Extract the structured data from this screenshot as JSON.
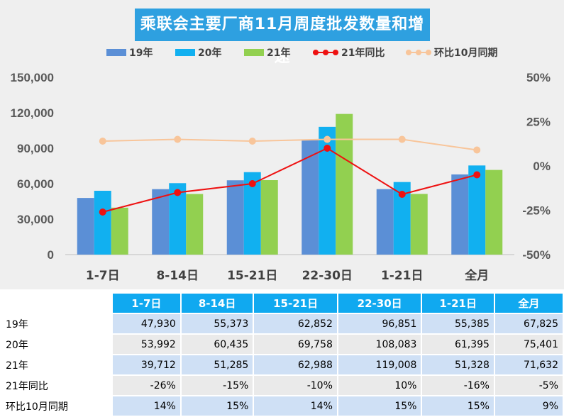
{
  "chart_data": {
    "type": "bar",
    "title": "乘联会主要厂商11月周度批发数量和增速",
    "categories": [
      "1-7日",
      "8-14日",
      "15-21日",
      "22-30日",
      "1-21日",
      "全月"
    ],
    "series": [
      {
        "name": "19年",
        "type": "bar",
        "color": "#5b8fd6",
        "values": [
          47930,
          55373,
          62852,
          96851,
          55385,
          67825
        ]
      },
      {
        "name": "20年",
        "type": "bar",
        "color": "#11b0f0",
        "values": [
          53992,
          60435,
          69758,
          108083,
          61395,
          75401
        ]
      },
      {
        "name": "21年",
        "type": "bar",
        "color": "#92d050",
        "values": [
          39712,
          51285,
          62988,
          119008,
          51328,
          71632
        ]
      },
      {
        "name": "21年同比",
        "type": "line",
        "axis": "right",
        "color": "#ee1111",
        "values": [
          -26,
          -15,
          -10,
          10,
          -16,
          -5
        ]
      },
      {
        "name": "环比10月同期",
        "type": "line",
        "axis": "right",
        "color": "#f8c59a",
        "values": [
          14,
          15,
          14,
          15,
          15,
          9
        ]
      }
    ],
    "y_left": {
      "min": 0,
      "max": 150000,
      "ticks": [
        "0",
        "30,000",
        "60,000",
        "90,000",
        "120,000",
        "150,000"
      ],
      "tick_values": [
        0,
        30000,
        60000,
        90000,
        120000,
        150000
      ]
    },
    "y_right": {
      "min": -50,
      "max": 50,
      "ticks": [
        "-50%",
        "-25%",
        "0%",
        "25%",
        "50%"
      ],
      "tick_values": [
        -50,
        -25,
        0,
        25,
        50
      ]
    },
    "legend_position": "top",
    "grid": false
  },
  "table": {
    "headers": [
      "1-7日",
      "8-14日",
      "15-21日",
      "22-30日",
      "1-21日",
      "全月"
    ],
    "rows": [
      {
        "label": "19年",
        "cells": [
          "47,930",
          "55,373",
          "62,852",
          "96,851",
          "55,385",
          "67,825"
        ]
      },
      {
        "label": "20年",
        "cells": [
          "53,992",
          "60,435",
          "69,758",
          "108,083",
          "61,395",
          "75,401"
        ]
      },
      {
        "label": "21年",
        "cells": [
          "39,712",
          "51,285",
          "62,988",
          "119,008",
          "51,328",
          "71,632"
        ]
      },
      {
        "label": "21年同比",
        "cells": [
          "-26%",
          "-15%",
          "-10%",
          "10%",
          "-16%",
          "-5%"
        ]
      },
      {
        "label": "环比10月同期",
        "cells": [
          "14%",
          "15%",
          "14%",
          "15%",
          "15%",
          "9%"
        ]
      }
    ]
  }
}
